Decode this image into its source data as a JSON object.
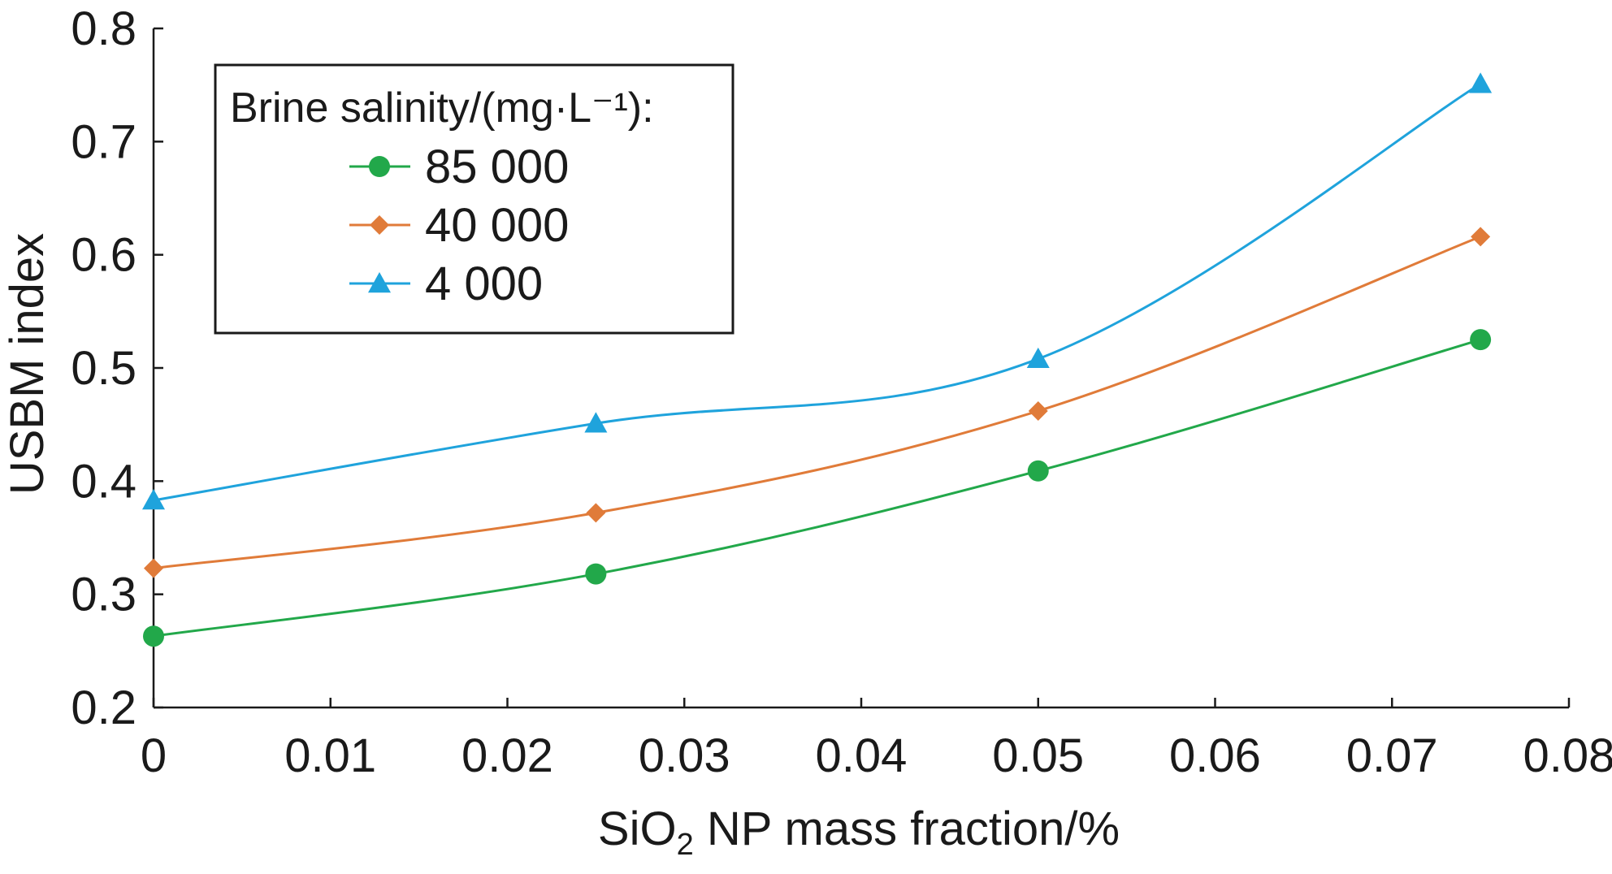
{
  "chart_data": {
    "type": "line",
    "xlabel_main": "SiO",
    "xlabel_sub": "2",
    "xlabel_rest": " NP mass fraction/%",
    "ylabel": "USBM index",
    "xlim": [
      0,
      0.08
    ],
    "ylim": [
      0.2,
      0.8
    ],
    "x_ticks": [
      "0",
      "0.01",
      "0.02",
      "0.03",
      "0.04",
      "0.05",
      "0.06",
      "0.07",
      "0.08"
    ],
    "y_ticks": [
      "0.2",
      "0.3",
      "0.4",
      "0.5",
      "0.6",
      "0.7",
      "0.8"
    ],
    "legend_title": "Brine salinity/(mg·L⁻¹):",
    "legend_position": "top-left",
    "grid": false,
    "series": [
      {
        "name": "85 000",
        "color": "#22a84a",
        "marker": "circle",
        "x": [
          0,
          0.025,
          0.05,
          0.075
        ],
        "y": [
          0.263,
          0.318,
          0.409,
          0.525
        ]
      },
      {
        "name": "40 000",
        "color": "#e07b39",
        "marker": "diamond",
        "x": [
          0,
          0.025,
          0.05,
          0.075
        ],
        "y": [
          0.323,
          0.372,
          0.462,
          0.616
        ]
      },
      {
        "name": "4 000",
        "color": "#1fa3dc",
        "marker": "triangle",
        "x": [
          0,
          0.025,
          0.05,
          0.075
        ],
        "y": [
          0.383,
          0.451,
          0.508,
          0.751
        ]
      }
    ]
  }
}
